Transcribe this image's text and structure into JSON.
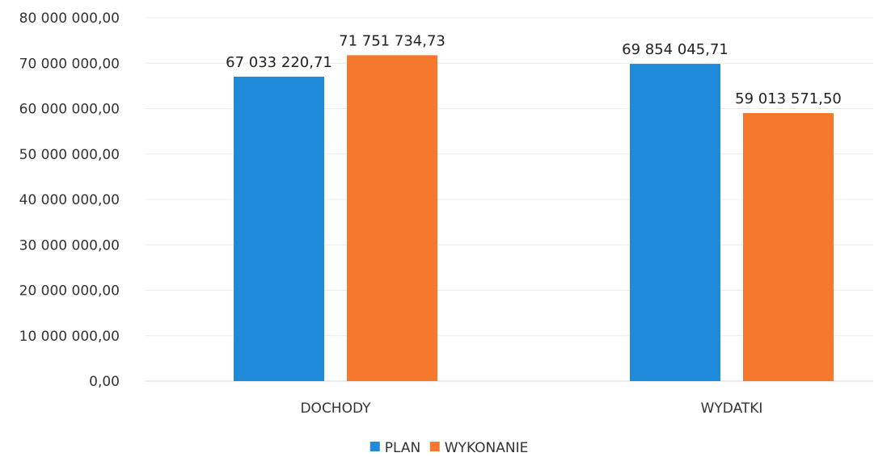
{
  "chart_data": {
    "type": "bar",
    "categories": [
      "DOCHODY",
      "WYDATKI"
    ],
    "series": [
      {
        "name": "PLAN",
        "values": [
          67033220.71,
          69854045.71
        ],
        "labels": [
          "67 033 220,71",
          "69 854 045,71"
        ],
        "color": "#1f8ad9"
      },
      {
        "name": "WYKONANIE",
        "values": [
          71751734.73,
          59013571.5
        ],
        "labels": [
          "71 751 734,73",
          "59 013 571,50"
        ],
        "color": "#f5782d"
      }
    ],
    "ylim": [
      0,
      80000000
    ],
    "yticks": [
      0,
      10000000,
      20000000,
      30000000,
      40000000,
      50000000,
      60000000,
      70000000,
      80000000
    ],
    "ytick_labels": [
      "0,00",
      "10 000 000,00",
      "20 000 000,00",
      "30 000 000,00",
      "40 000 000,00",
      "50 000 000,00",
      "60 000 000,00",
      "70 000 000,00",
      "80 000 000,00"
    ],
    "grid": true,
    "legend": "bottom-center"
  }
}
